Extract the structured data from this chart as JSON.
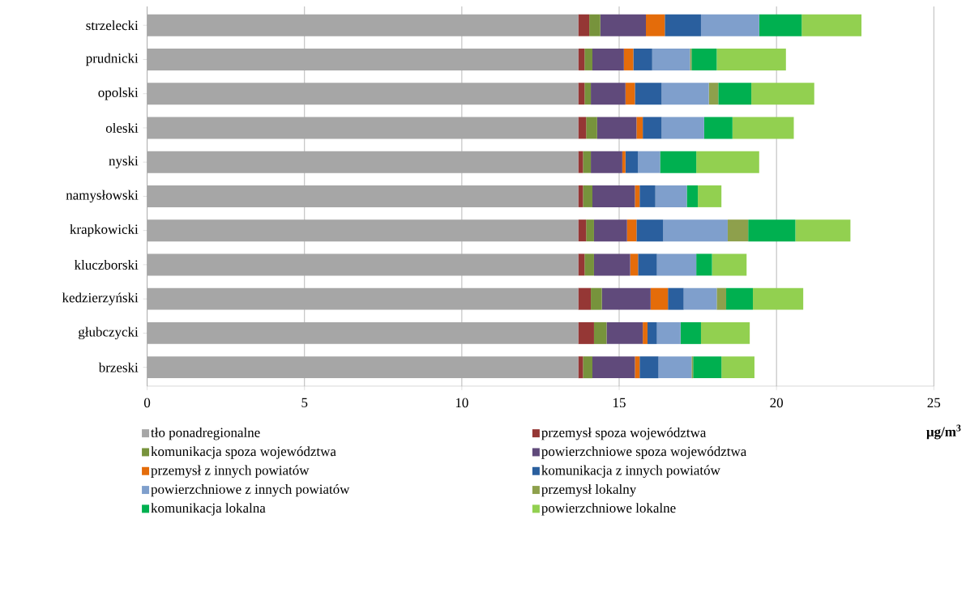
{
  "chart_data": {
    "type": "bar",
    "orientation": "horizontal",
    "stacked": true,
    "categories": [
      "strzelecki",
      "prudnicki",
      "opolski",
      "oleski",
      "nyski",
      "namysłowski",
      "krapkowicki",
      "kluczborski",
      "kedzierzyński",
      "głubczycki",
      "brzeski"
    ],
    "series": [
      {
        "name": "tło ponadregionalne",
        "color": "#a6a6a6",
        "values": [
          13.7,
          13.7,
          13.7,
          13.7,
          13.7,
          13.7,
          13.7,
          13.7,
          13.7,
          13.7,
          13.7
        ]
      },
      {
        "name": "przemysł spoza województwa",
        "color": "#953735",
        "values": [
          0.35,
          0.2,
          0.2,
          0.25,
          0.15,
          0.15,
          0.25,
          0.2,
          0.4,
          0.5,
          0.15
        ]
      },
      {
        "name": "komunikacja spoza województwa",
        "color": "#77933c",
        "values": [
          0.35,
          0.25,
          0.2,
          0.35,
          0.25,
          0.3,
          0.25,
          0.3,
          0.35,
          0.4,
          0.3
        ]
      },
      {
        "name": "powierzchniowe spoza województwa",
        "color": "#604a7b",
        "values": [
          1.45,
          1.0,
          1.1,
          1.25,
          1.0,
          1.35,
          1.05,
          1.15,
          1.55,
          1.15,
          1.35
        ]
      },
      {
        "name": "przemysł z innych powiatów",
        "color": "#e46c0a",
        "values": [
          0.6,
          0.3,
          0.3,
          0.2,
          0.1,
          0.15,
          0.3,
          0.25,
          0.55,
          0.15,
          0.15
        ]
      },
      {
        "name": "komunikacja z innych powiatów",
        "color": "#2a5f9e",
        "values": [
          1.15,
          0.6,
          0.85,
          0.6,
          0.4,
          0.5,
          0.85,
          0.6,
          0.5,
          0.3,
          0.6
        ]
      },
      {
        "name": "powierzchniowe z innych powiatów",
        "color": "#7f9fcc",
        "values": [
          1.85,
          1.2,
          1.5,
          1.35,
          0.7,
          1.0,
          2.05,
          1.25,
          1.05,
          0.75,
          1.05
        ]
      },
      {
        "name": "przemysł lokalny",
        "color": "#8ea04c",
        "values": [
          0,
          0.05,
          0.3,
          0,
          0,
          0,
          0.65,
          0,
          0.3,
          0,
          0.05
        ]
      },
      {
        "name": "komunikacja lokalna",
        "color": "#00b050",
        "values": [
          1.35,
          0.8,
          1.05,
          0.9,
          1.15,
          0.35,
          1.5,
          0.5,
          0.85,
          0.65,
          0.9
        ]
      },
      {
        "name": "powierzchniowe lokalne",
        "color": "#92d050",
        "values": [
          1.9,
          2.2,
          2.0,
          1.95,
          2.0,
          0.75,
          1.75,
          1.1,
          1.6,
          1.55,
          1.05
        ]
      }
    ],
    "xlim": [
      0,
      25
    ],
    "xticks": [
      0,
      5,
      10,
      15,
      20,
      25
    ],
    "xlabel": "**μg/m$^{3}$**",
    "grid": "x",
    "legend": "bottom"
  }
}
